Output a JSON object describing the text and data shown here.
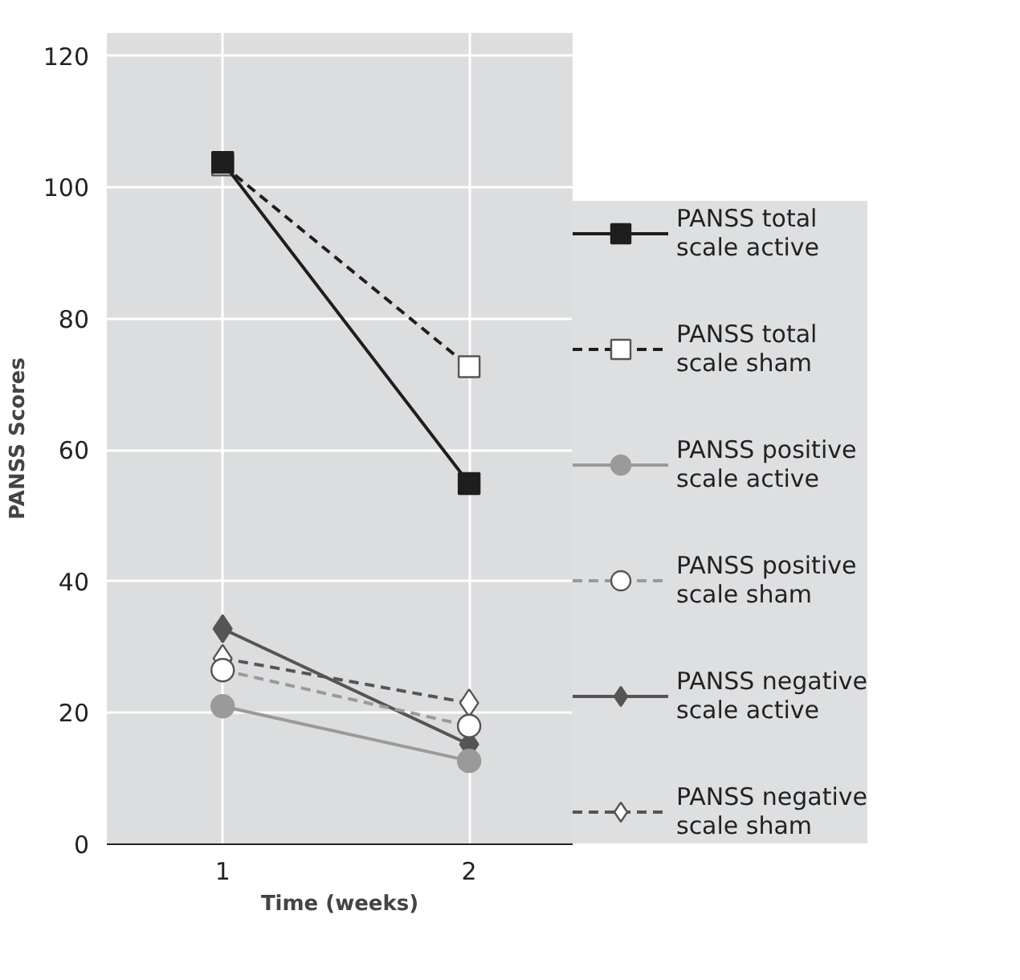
{
  "chart_data": {
    "type": "line",
    "xlabel": "Time (weeks)",
    "ylabel": "PANSS Scores",
    "x": [
      1,
      2
    ],
    "xlim": [
      0.53,
      2.42
    ],
    "xticks": [
      1,
      2
    ],
    "ylim": [
      0,
      123.5
    ],
    "yticks": [
      0,
      20,
      40,
      60,
      80,
      100,
      120
    ],
    "grid": true,
    "legend": "right",
    "series": [
      {
        "name": "PANSS total scale active",
        "color": "#1e1e1e",
        "values": [
          103.8,
          54.9
        ],
        "marker": "square",
        "line_style": "solid"
      },
      {
        "name": "PANSS total scale sham",
        "color": "#1e1e1e",
        "values": [
          103.4,
          72.7
        ],
        "marker": "square",
        "line_style": "dashed"
      },
      {
        "name": "PANSS positive scale active",
        "color": "#9a9a9a",
        "values": [
          21,
          12.7
        ],
        "marker": "circle",
        "line_style": "solid"
      },
      {
        "name": "PANSS positive scale sham",
        "color": "#9a9a9a",
        "values": [
          26.5,
          18
        ],
        "marker": "circle",
        "line_style": "dashed"
      },
      {
        "name": "PANSS negative scale active",
        "color": "#555555",
        "values": [
          32.8,
          15.2
        ],
        "marker": "diamond",
        "line_style": "solid"
      },
      {
        "name": "PANSS negative scale sham",
        "color": "#555555",
        "values": [
          28.3,
          21.5
        ],
        "marker": "diamond",
        "line_style": "dashed"
      }
    ]
  }
}
